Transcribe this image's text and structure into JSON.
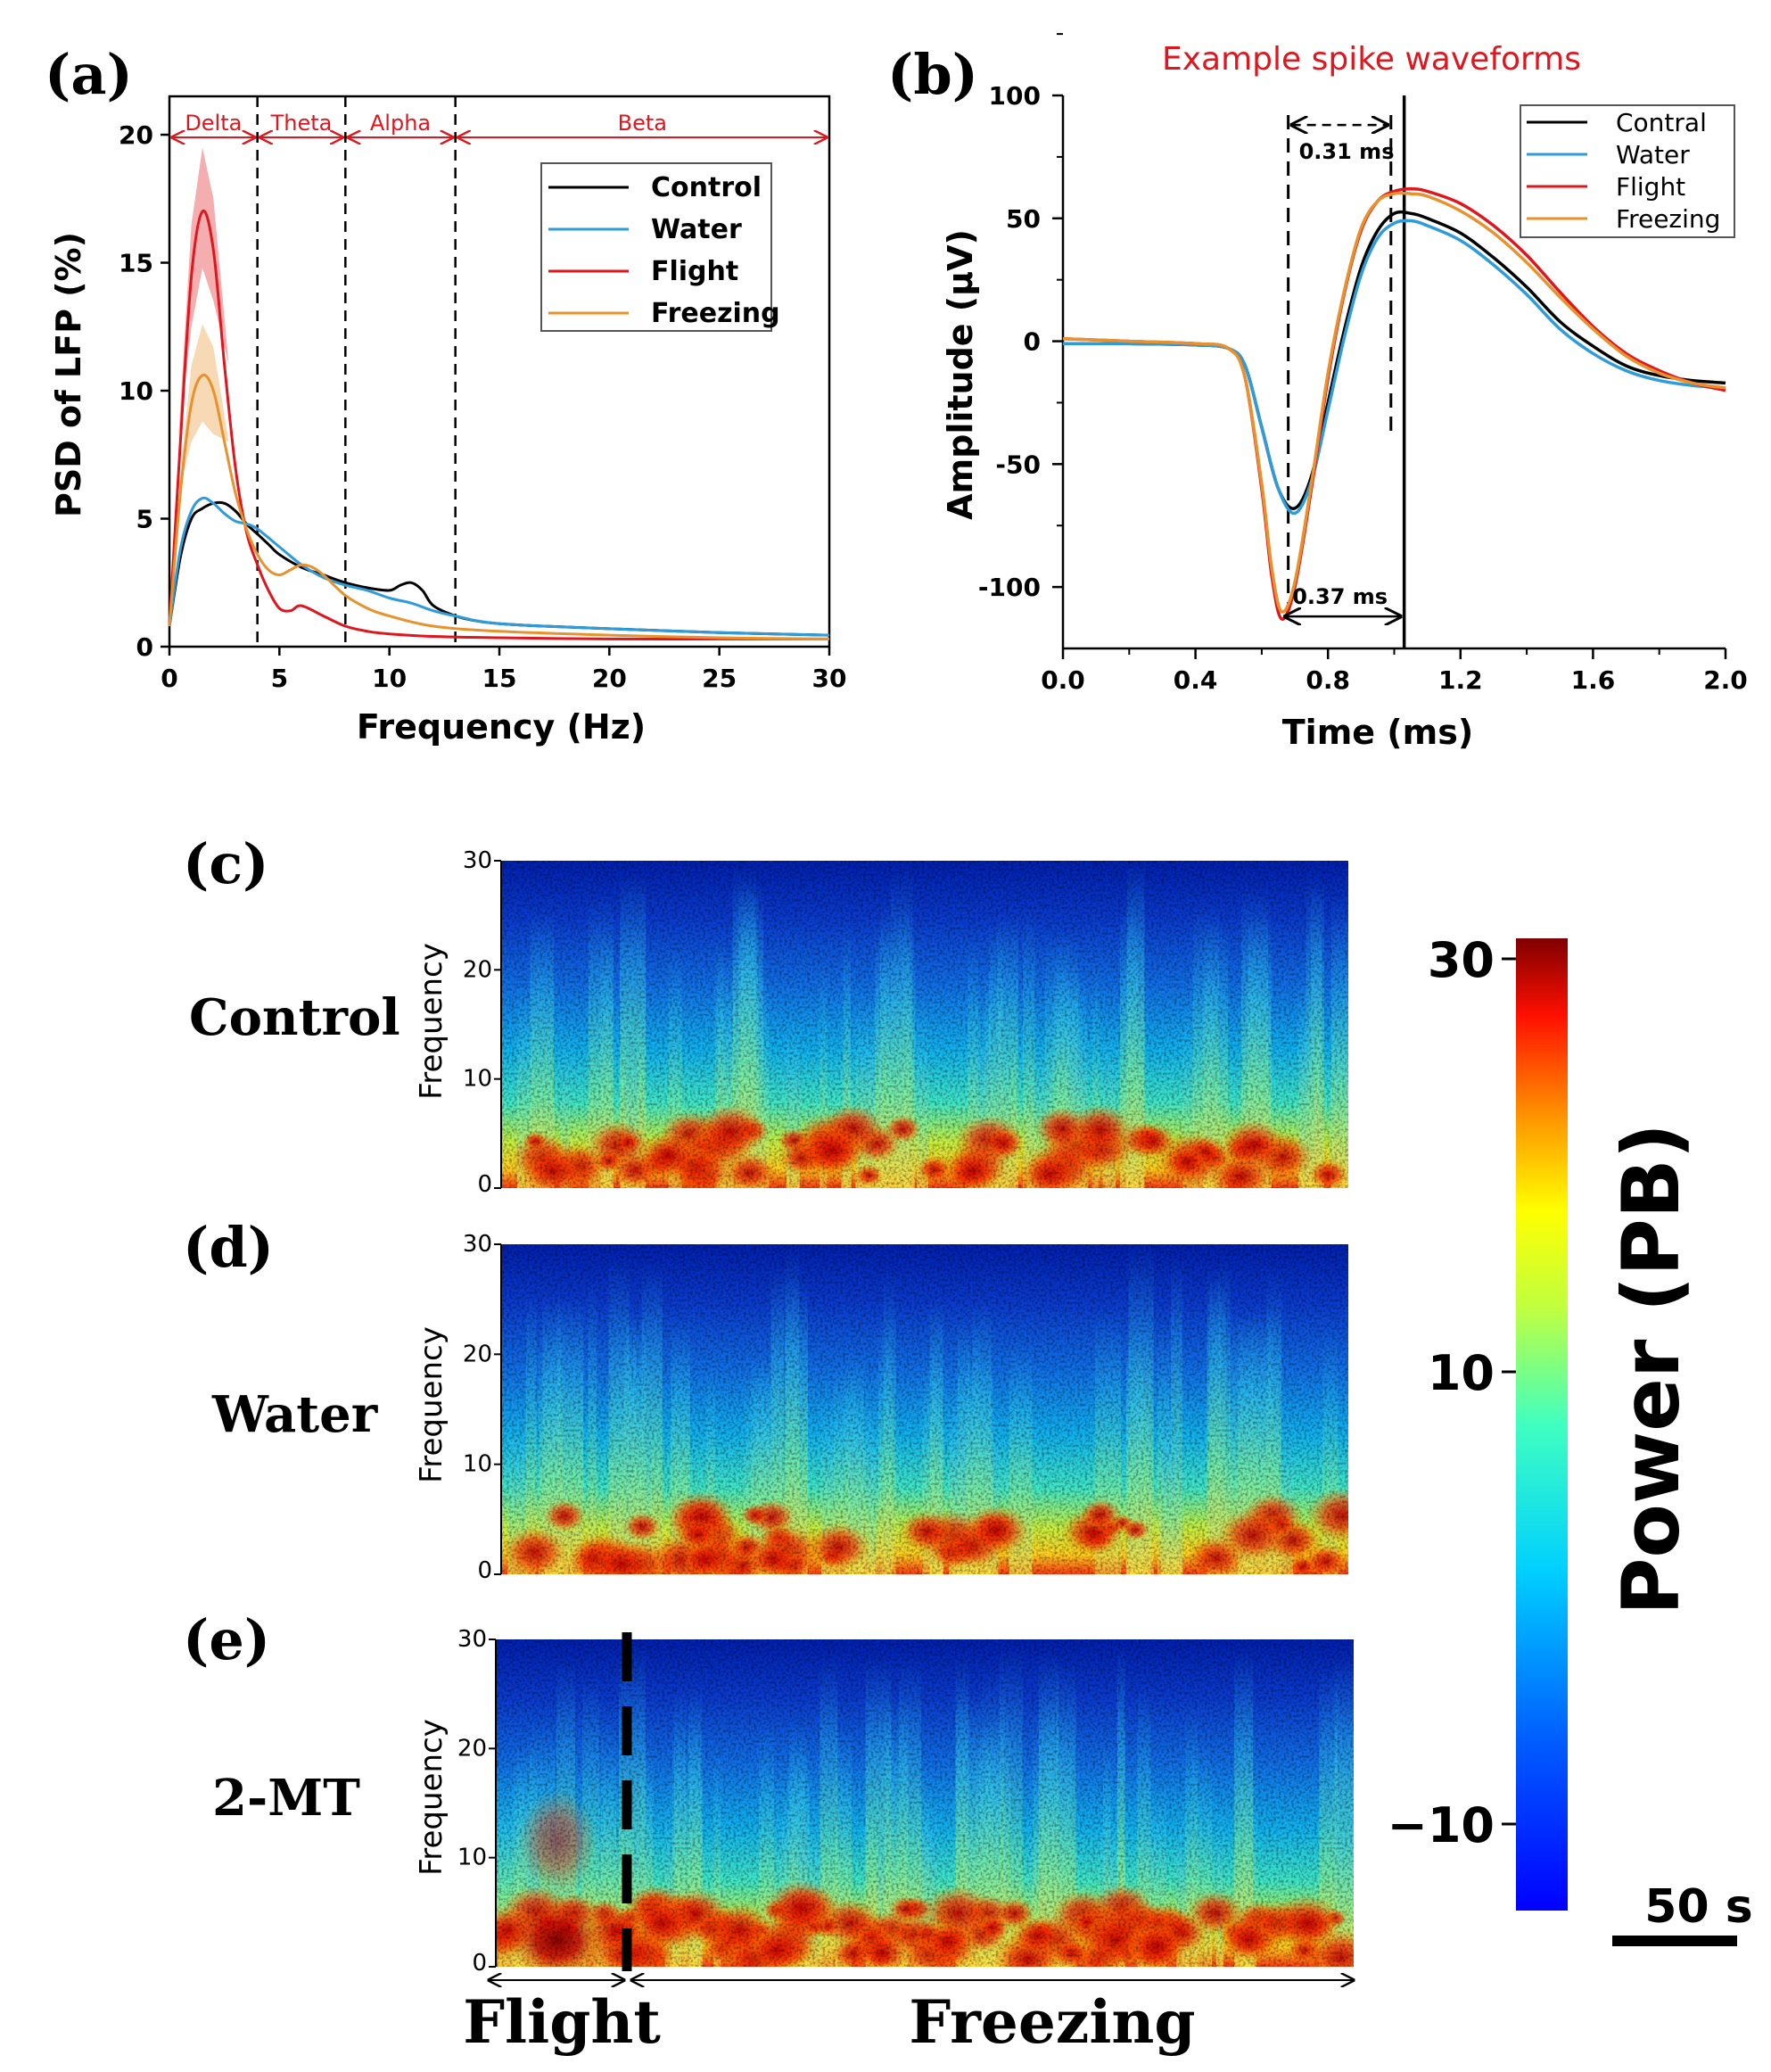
{
  "chart_data": [
    {
      "panel": "(a)",
      "type": "line",
      "xlabel": "Frequency (Hz)",
      "ylabel": "PSD of LFP (%)",
      "xlim": [
        0,
        30
      ],
      "ylim": [
        0,
        20
      ],
      "xticks": [
        0,
        5,
        10,
        15,
        20,
        25,
        30
      ],
      "yticks": [
        0,
        5,
        10,
        15,
        20
      ],
      "legend_position": "top-right",
      "bands": [
        {
          "name": "Delta",
          "from": 0,
          "to": 4
        },
        {
          "name": "Theta",
          "from": 4,
          "to": 8
        },
        {
          "name": "Alpha",
          "from": 8,
          "to": 13
        },
        {
          "name": "Beta",
          "from": 13,
          "to": 30
        }
      ],
      "band_lines": [
        4,
        8,
        13
      ],
      "series": [
        {
          "name": "Control",
          "color": "#000000",
          "x": [
            0,
            0.5,
            1,
            1.5,
            2,
            2.5,
            3,
            3.5,
            4,
            4.5,
            5,
            6,
            7,
            8,
            9,
            10,
            10.5,
            11,
            11.5,
            12,
            13,
            14,
            15,
            17,
            20,
            25,
            30
          ],
          "y": [
            0.8,
            3.5,
            5.0,
            5.4,
            5.6,
            5.6,
            5.3,
            4.8,
            4.4,
            4.0,
            3.6,
            3.1,
            2.8,
            2.5,
            2.3,
            2.2,
            2.4,
            2.5,
            2.2,
            1.6,
            1.2,
            1.0,
            0.9,
            0.8,
            0.7,
            0.55,
            0.45
          ]
        },
        {
          "name": "Water",
          "color": "#2E9BDA",
          "x": [
            0,
            0.5,
            1,
            1.5,
            2,
            2.5,
            3,
            3.5,
            4,
            5,
            6,
            7,
            8,
            9,
            10,
            11,
            12,
            13,
            15,
            20,
            25,
            30
          ],
          "y": [
            0.8,
            3.8,
            5.3,
            5.8,
            5.6,
            5.2,
            4.9,
            4.8,
            4.6,
            3.9,
            3.2,
            2.7,
            2.4,
            2.2,
            1.9,
            1.7,
            1.4,
            1.2,
            0.9,
            0.7,
            0.55,
            0.45
          ]
        },
        {
          "name": "Flight",
          "color": "#E0161E",
          "x": [
            0,
            0.5,
            1,
            1.5,
            2,
            2.5,
            3,
            3.5,
            4,
            4.5,
            5,
            5.5,
            6,
            7,
            8,
            9,
            10,
            12,
            15,
            20,
            25,
            30
          ],
          "y": [
            0.8,
            8.0,
            14.5,
            17.0,
            15.5,
            11.0,
            7.0,
            4.5,
            3.2,
            2.2,
            1.5,
            1.4,
            1.6,
            1.2,
            0.8,
            0.6,
            0.5,
            0.4,
            0.35,
            0.3,
            0.3,
            0.3
          ]
        },
        {
          "name": "Freezing",
          "color": "#E8922E",
          "x": [
            0,
            0.5,
            1,
            1.5,
            2,
            2.5,
            3,
            3.5,
            4,
            4.5,
            5,
            5.5,
            6,
            6.5,
            7,
            8,
            9,
            10,
            12,
            15,
            20,
            25,
            30
          ],
          "y": [
            0.8,
            6.0,
            9.5,
            10.6,
            10.0,
            8.0,
            6.0,
            4.6,
            3.6,
            3.0,
            2.8,
            3.0,
            3.2,
            3.1,
            2.8,
            2.0,
            1.5,
            1.2,
            0.8,
            0.6,
            0.45,
            0.35,
            0.3
          ]
        }
      ],
      "shaded_sd": [
        {
          "name": "Flight",
          "color": "#E0161E",
          "x": [
            1,
            1.5,
            2
          ],
          "lower": [
            12.5,
            14.8,
            13.5
          ],
          "upper": [
            16.5,
            19.5,
            17.5
          ]
        },
        {
          "name": "Freezing",
          "color": "#E8922E",
          "x": [
            1,
            1.5,
            2
          ],
          "lower": [
            8.0,
            8.8,
            8.3
          ],
          "upper": [
            11.0,
            12.6,
            11.7
          ]
        }
      ]
    },
    {
      "panel": "(b)",
      "type": "line",
      "title": "Example spike waveforms",
      "xlabel": "Time (ms)",
      "ylabel": "Amplitude (μV)",
      "xlim": [
        0,
        2
      ],
      "ylim": [
        -125,
        100
      ],
      "xticks": [
        "0.0",
        "0.4",
        "0.8",
        "1.2",
        "1.6",
        "2.0"
      ],
      "yticks": [
        -100,
        -50,
        0,
        50,
        100
      ],
      "legend_position": "top-right",
      "annotations": [
        {
          "text": "0.31 ms",
          "from": 0.68,
          "to": 0.99,
          "y": 88
        },
        {
          "text": "0.37 ms",
          "from": 0.66,
          "to": 1.03,
          "y": -112
        }
      ],
      "dashed_lines": [
        0.68,
        0.99
      ],
      "solid_lines": [
        1.03
      ],
      "series": [
        {
          "name": "Contral",
          "color": "#000000",
          "x": [
            0,
            0.2,
            0.4,
            0.5,
            0.55,
            0.6,
            0.65,
            0.7,
            0.75,
            0.8,
            0.85,
            0.9,
            0.95,
            1.0,
            1.05,
            1.1,
            1.2,
            1.3,
            1.4,
            1.5,
            1.6,
            1.7,
            1.8,
            1.9,
            2.0
          ],
          "y": [
            -1,
            -1,
            -1.5,
            -3,
            -10,
            -35,
            -60,
            -68,
            -55,
            -25,
            5,
            30,
            45,
            52,
            52,
            50,
            44,
            34,
            22,
            8,
            -2,
            -10,
            -14,
            -16,
            -17
          ]
        },
        {
          "name": "Water",
          "color": "#2E9BDA",
          "x": [
            0,
            0.2,
            0.4,
            0.5,
            0.55,
            0.6,
            0.65,
            0.7,
            0.75,
            0.8,
            0.85,
            0.9,
            0.95,
            1.0,
            1.05,
            1.1,
            1.2,
            1.3,
            1.4,
            1.5,
            1.6,
            1.7,
            1.8,
            1.9,
            2.0
          ],
          "y": [
            -1,
            -1,
            -1.5,
            -3,
            -10,
            -35,
            -60,
            -70,
            -57,
            -28,
            2,
            27,
            42,
            48,
            49,
            47,
            41,
            31,
            19,
            5,
            -5,
            -12,
            -16,
            -18,
            -19
          ]
        },
        {
          "name": "Flight",
          "color": "#E0161E",
          "x": [
            0,
            0.2,
            0.4,
            0.5,
            0.55,
            0.6,
            0.63,
            0.66,
            0.7,
            0.75,
            0.8,
            0.85,
            0.9,
            0.95,
            1.0,
            1.05,
            1.1,
            1.2,
            1.3,
            1.4,
            1.5,
            1.6,
            1.7,
            1.8,
            1.9,
            2.0
          ],
          "y": [
            1,
            0,
            -1,
            -3,
            -15,
            -60,
            -95,
            -113,
            -100,
            -60,
            -15,
            20,
            45,
            57,
            61,
            62,
            61,
            56,
            47,
            35,
            20,
            6,
            -5,
            -12,
            -17,
            -20
          ]
        },
        {
          "name": "Freezing",
          "color": "#E8922E",
          "x": [
            0,
            0.2,
            0.4,
            0.5,
            0.55,
            0.6,
            0.63,
            0.66,
            0.7,
            0.75,
            0.8,
            0.85,
            0.9,
            0.95,
            1.0,
            1.05,
            1.1,
            1.2,
            1.3,
            1.4,
            1.5,
            1.6,
            1.7,
            1.8,
            1.9,
            2.0
          ],
          "y": [
            1,
            0,
            -1,
            -3,
            -15,
            -58,
            -92,
            -110,
            -98,
            -58,
            -13,
            21,
            46,
            57,
            60,
            60,
            59,
            53,
            44,
            32,
            18,
            5,
            -6,
            -13,
            -17,
            -19
          ]
        }
      ]
    },
    {
      "panel": "(c)",
      "type": "heatmap",
      "row_label": "Control",
      "ylabel": "Frequency",
      "ylim": [
        0,
        30
      ],
      "yticks": [
        0,
        10,
        20,
        30
      ]
    },
    {
      "panel": "(d)",
      "type": "heatmap",
      "row_label": "Water",
      "ylabel": "Frequency",
      "ylim": [
        0,
        30
      ],
      "yticks": [
        0,
        10,
        20,
        30
      ]
    },
    {
      "panel": "(e)",
      "type": "heatmap",
      "row_label": "2-MT",
      "ylabel": "Frequency",
      "ylim": [
        0,
        30
      ],
      "yticks": [
        0,
        10,
        20,
        30
      ],
      "phases": [
        "Flight",
        "Freezing"
      ]
    }
  ],
  "colorbar": {
    "label": "Power (PB)",
    "ticks": [
      "30",
      "10",
      "−10"
    ],
    "scale_bar": "50 s"
  }
}
